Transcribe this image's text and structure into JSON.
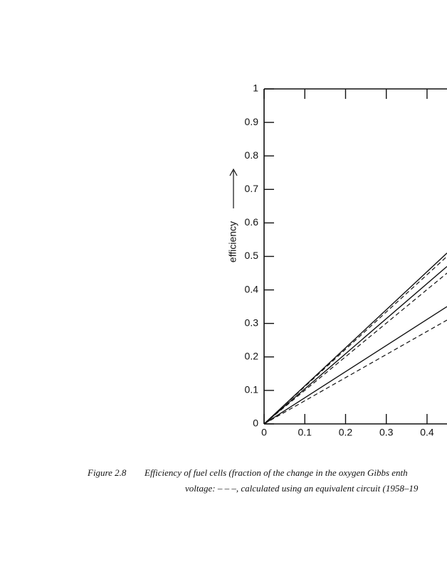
{
  "chart_data": {
    "type": "line",
    "y_label": "efficiency",
    "caption": {
      "number": "Figure 2.8",
      "line1": "Efficiency of fuel cells (fraction of the change in the oxygen Gibbs enth",
      "line2": "voltage: – – –, calculated using an equivalent circuit (1958–19"
    },
    "x": [
      0,
      0.449
    ],
    "series": [
      {
        "color": "#111111",
        "style": "solid",
        "values": [
          0,
          0.51
        ]
      },
      {
        "color": "#111111",
        "style": "dashed",
        "values": [
          0,
          0.5
        ]
      },
      {
        "color": "#111111",
        "style": "solid",
        "values": [
          0,
          0.47
        ]
      },
      {
        "color": "#111111",
        "style": "dashed",
        "values": [
          0,
          0.45
        ]
      },
      {
        "color": "#111111",
        "style": "solid",
        "values": [
          0,
          0.35
        ]
      },
      {
        "color": "#111111",
        "style": "dashed",
        "values": [
          0,
          0.31
        ]
      }
    ],
    "xlim": [
      0,
      0.449
    ],
    "xticks": [
      0,
      0.1,
      0.2,
      0.3,
      0.4
    ],
    "ylim": [
      0,
      1
    ],
    "yticks": [
      0,
      0.1,
      0.2,
      0.3,
      0.4,
      0.5,
      0.6,
      0.7,
      0.8,
      0.9,
      1
    ],
    "grid": false
  }
}
